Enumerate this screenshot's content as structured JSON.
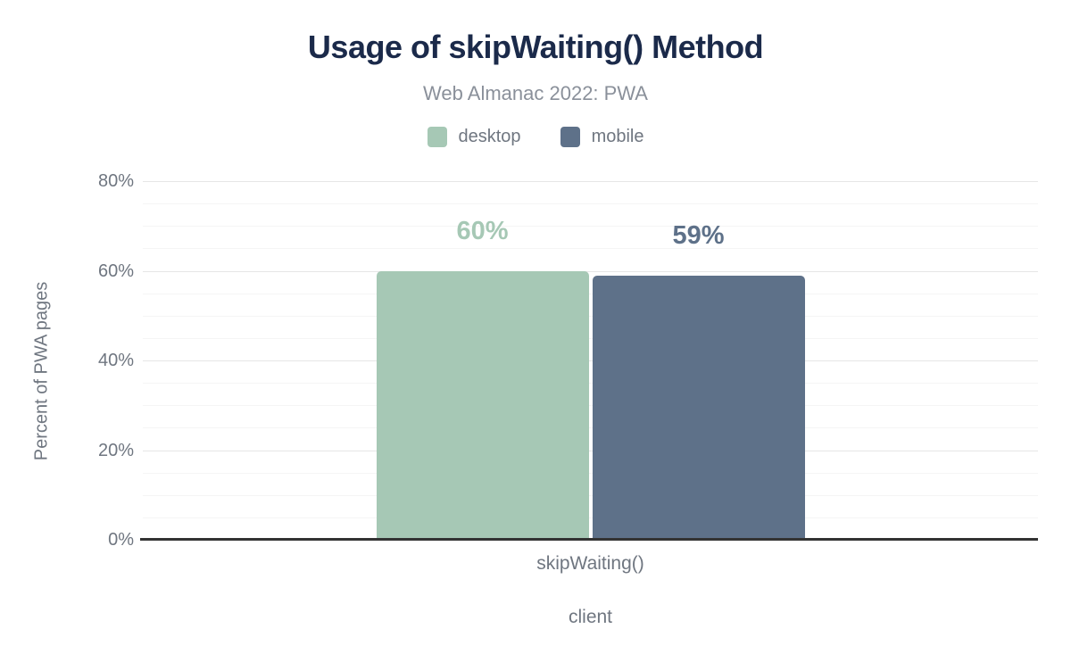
{
  "header": {
    "title": "Usage of skipWaiting() Method",
    "subtitle": "Web Almanac 2022: PWA"
  },
  "legend": {
    "items": [
      {
        "label": "desktop",
        "color": "#a6c8b5"
      },
      {
        "label": "mobile",
        "color": "#5e7189"
      }
    ]
  },
  "chart_data": {
    "type": "bar",
    "title": "Usage of skipWaiting() Method",
    "subtitle": "Web Almanac 2022: PWA",
    "categories": [
      "skipWaiting()"
    ],
    "series": [
      {
        "name": "desktop",
        "values": [
          60
        ],
        "data_labels": [
          "60%"
        ],
        "color": "#a6c8b5"
      },
      {
        "name": "mobile",
        "values": [
          59
        ],
        "data_labels": [
          "59%"
        ],
        "color": "#5e7189"
      }
    ],
    "xlabel": "client",
    "ylabel": "Percent of PWA pages",
    "ylim": [
      0,
      80
    ],
    "y_ticks": [
      0,
      20,
      40,
      60,
      80
    ],
    "y_tick_labels": [
      "0%",
      "20%",
      "40%",
      "60%",
      "80%"
    ],
    "y_minor_step": 5,
    "grid": true,
    "legend_position": "top"
  },
  "colors": {
    "title_text": "#1b2a4a",
    "subtitle_text": "#8a909a",
    "axis_text": "#6f7680",
    "axis_line": "#333333",
    "grid_major": "#e6e6e6",
    "grid_minor": "#f5f5f5",
    "background": "#ffffff"
  }
}
